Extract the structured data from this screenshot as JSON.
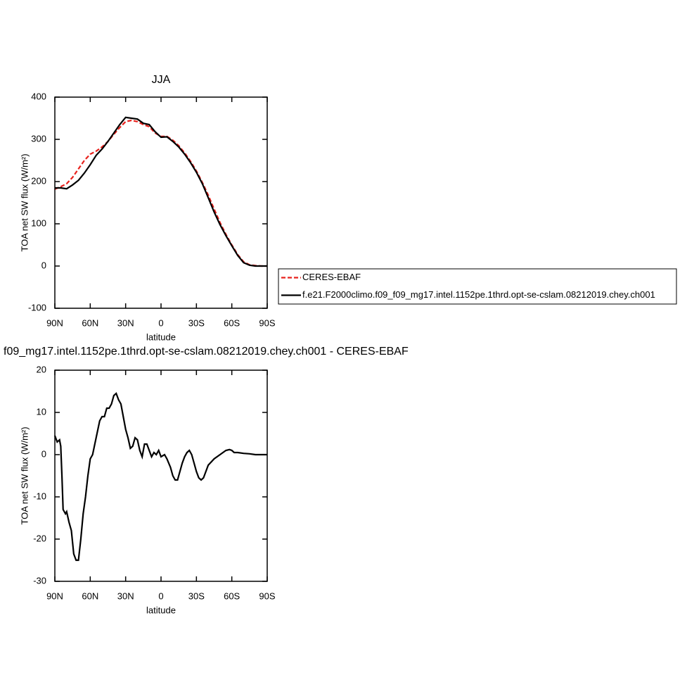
{
  "chart_data": [
    {
      "type": "line",
      "title": "JJA",
      "x_label": "latitude",
      "y_label": "TOA net SW flux (W/m²)",
      "x": [
        90,
        85,
        80,
        75,
        70,
        65,
        60,
        55,
        50,
        45,
        40,
        35,
        30,
        25,
        20,
        15,
        10,
        5,
        0,
        -5,
        -10,
        -15,
        -20,
        -25,
        -30,
        -35,
        -40,
        -45,
        -50,
        -55,
        -60,
        -65,
        -70,
        -75,
        -80,
        -85,
        -90
      ],
      "series": [
        {
          "name": "CERES-EBAF",
          "color": "#e8211c",
          "dashed": true,
          "values": [
            182,
            188,
            195,
            210,
            230,
            250,
            265,
            272,
            282,
            295,
            312,
            328,
            342,
            345,
            342,
            335,
            330,
            315,
            307,
            307,
            298,
            285,
            268,
            248,
            225,
            198,
            168,
            135,
            103,
            75,
            50,
            27,
            10,
            3,
            1,
            0,
            0
          ]
        },
        {
          "name": "f.e21.F2000climo.f09_f09_mg17.intel.1152pe.1thrd.opt-se-cslam.08212019.chey.ch001",
          "color": "#000000",
          "dashed": false,
          "values": [
            185,
            185,
            183,
            192,
            203,
            220,
            240,
            262,
            277,
            295,
            315,
            335,
            352,
            350,
            348,
            338,
            335,
            318,
            305,
            306,
            295,
            282,
            265,
            245,
            222,
            195,
            162,
            128,
            98,
            72,
            48,
            25,
            8,
            2,
            0,
            0,
            0
          ]
        }
      ],
      "xlim": [
        90,
        -90
      ],
      "xticks": [
        {
          "value": 90,
          "label": "90N"
        },
        {
          "value": 60,
          "label": "60N"
        },
        {
          "value": 30,
          "label": "30N"
        },
        0,
        {
          "value": -30,
          "label": "30S"
        },
        {
          "value": -60,
          "label": "60S"
        },
        {
          "value": -90,
          "label": "90S"
        }
      ],
      "ylim": [
        -100,
        400
      ],
      "yticks": [
        -100,
        0,
        100,
        200,
        300,
        400
      ],
      "legend": "right"
    },
    {
      "type": "line",
      "title": "f09_mg17.intel.1152pe.1thrd.opt-se-cslam.08212019.chey.ch001 - CERES-EBAF",
      "x_label": "latitude",
      "y_label": "TOA net SW flux (W/m²)",
      "x": [
        90,
        88,
        86,
        85,
        84,
        83,
        81,
        80,
        78,
        76,
        74,
        72,
        70,
        68,
        66,
        64,
        62,
        60,
        58,
        55,
        52,
        50,
        48,
        46,
        44,
        42,
        40,
        38,
        36,
        34,
        32,
        30,
        28,
        26,
        24,
        22,
        20,
        18,
        16,
        14,
        12,
        10,
        8,
        6,
        4,
        2,
        0,
        -3,
        -5,
        -8,
        -10,
        -12,
        -14,
        -16,
        -18,
        -20,
        -22,
        -24,
        -26,
        -28,
        -30,
        -32,
        -34,
        -36,
        -38,
        -40,
        -45,
        -50,
        -55,
        -58,
        -60,
        -62,
        -65,
        -70,
        -75,
        -80,
        -85,
        -90
      ],
      "series": [
        {
          "color": "#000000",
          "dashed": false,
          "values": [
            4.5,
            3,
            3.5,
            2,
            -5,
            -13,
            -14,
            -13.5,
            -16,
            -18,
            -23.5,
            -25,
            -25,
            -20,
            -14,
            -10,
            -5,
            -1,
            0,
            4,
            8,
            9,
            9,
            11,
            11,
            12,
            14,
            14.5,
            13,
            12,
            9,
            6,
            4,
            1.5,
            2,
            4,
            3.5,
            1,
            -0.5,
            2.5,
            2.5,
            1,
            -0.5,
            0.5,
            0,
            1,
            -0.5,
            0,
            -1,
            -3,
            -5,
            -6,
            -6,
            -4,
            -2,
            -0.5,
            0.5,
            1,
            0,
            -2,
            -4,
            -5.5,
            -6,
            -5.5,
            -4,
            -2.5,
            -1,
            0,
            1,
            1.2,
            1,
            0.5,
            0.5,
            0.3,
            0.2,
            0,
            0,
            0
          ]
        }
      ],
      "xlim": [
        90,
        -90
      ],
      "xticks": [
        {
          "value": 90,
          "label": "90N"
        },
        {
          "value": 60,
          "label": "60N"
        },
        {
          "value": 30,
          "label": "30N"
        },
        0,
        {
          "value": -30,
          "label": "30S"
        },
        {
          "value": -60,
          "label": "60S"
        },
        {
          "value": -90,
          "label": "90S"
        }
      ],
      "ylim": [
        -30,
        20
      ],
      "yticks": [
        -30,
        -20,
        -10,
        0,
        10,
        20
      ]
    }
  ]
}
